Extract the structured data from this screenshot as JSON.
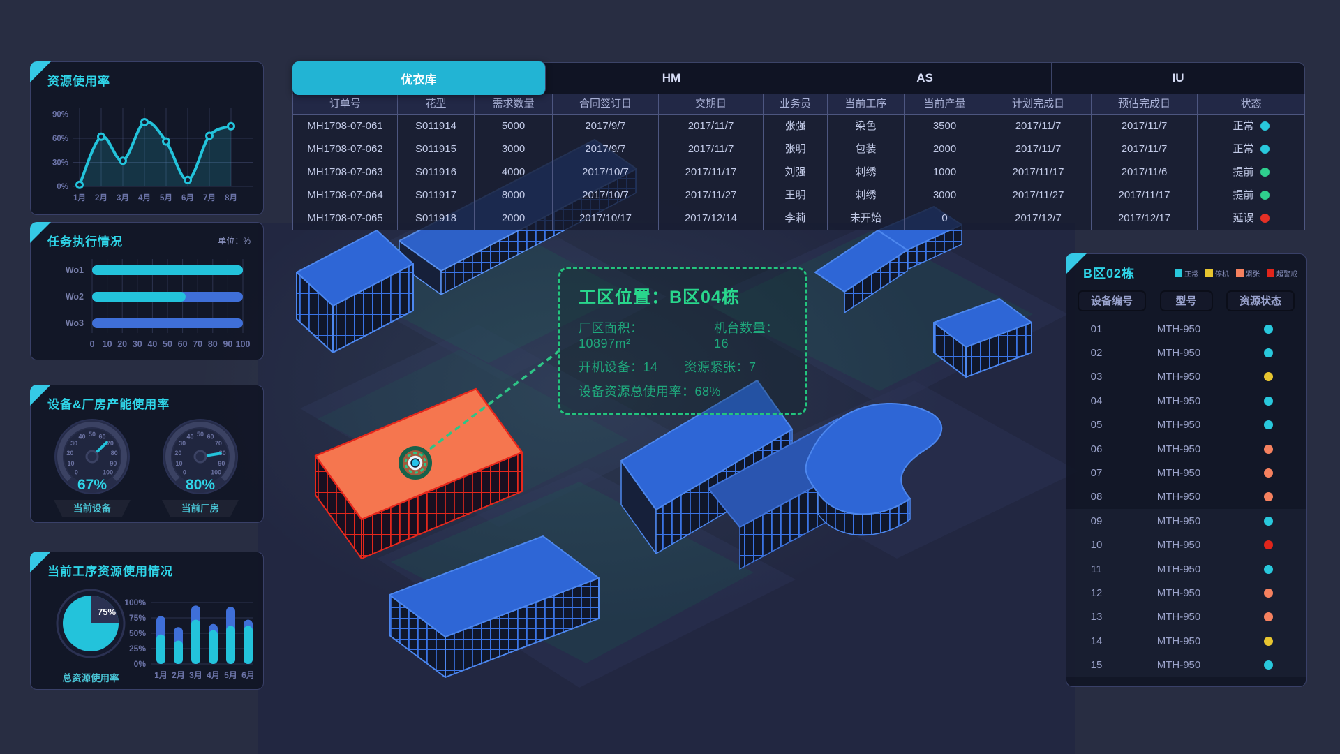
{
  "colors": {
    "accent_cyan": "#29c6dc",
    "bar_blue": "#3f6fd8"
  },
  "panels": {
    "resource_usage": {
      "title": "资源使用率",
      "chart_data": {
        "type": "line",
        "x": [
          "1月",
          "2月",
          "3月",
          "4月",
          "5月",
          "6月",
          "7月",
          "8月"
        ],
        "values": [
          2,
          62,
          32,
          80,
          56,
          8,
          63,
          75
        ],
        "yticks": [
          0,
          30,
          60,
          90
        ],
        "ytick_suffix": "%",
        "ylim": [
          0,
          95
        ],
        "grid": true
      }
    },
    "task_execution": {
      "title": "任务执行情况",
      "unit": "单位：%",
      "chart_data": {
        "type": "hbar",
        "categories": [
          "Wo1",
          "Wo2",
          "Wo3"
        ],
        "series": [
          {
            "name": "cyan",
            "values": [
              100,
              62,
              0
            ]
          },
          {
            "name": "blue",
            "values": [
              0,
              38,
              100
            ]
          }
        ],
        "xticks": [
          0,
          10,
          20,
          30,
          40,
          50,
          60,
          70,
          80,
          90,
          100
        ],
        "xlim": [
          0,
          100
        ]
      }
    },
    "capacity": {
      "title": "设备&厂房产能使用率",
      "chart_data": [
        {
          "type": "gauge",
          "value": 67,
          "display": "67%",
          "caption": "当前设备",
          "min": 0,
          "max": 100,
          "ticks": [
            0,
            10,
            20,
            30,
            40,
            50,
            60,
            70,
            80,
            90,
            100
          ]
        },
        {
          "type": "gauge",
          "value": 80,
          "display": "80%",
          "caption": "当前厂房",
          "min": 0,
          "max": 100,
          "ticks": [
            0,
            10,
            20,
            30,
            40,
            50,
            60,
            70,
            80,
            90,
            100
          ]
        }
      ]
    },
    "process_usage": {
      "title": "当前工序资源使用情况",
      "chart_data": [
        {
          "type": "pie",
          "value": 75,
          "label": "75%",
          "caption": "总资源使用率"
        },
        {
          "type": "stacked-bar",
          "categories": [
            "1月",
            "2月",
            "3月",
            "4月",
            "5月",
            "6月"
          ],
          "lower": [
            48,
            38,
            72,
            55,
            62,
            62
          ],
          "totals": [
            78,
            60,
            95,
            65,
            93,
            72
          ],
          "yticks": [
            0,
            25,
            50,
            75,
            100
          ],
          "ytick_suffix": "%",
          "ylim": [
            0,
            100
          ]
        }
      ]
    }
  },
  "orders": {
    "tabs": [
      {
        "label": "优衣库",
        "active": true
      },
      {
        "label": "HM",
        "active": false
      },
      {
        "label": "AS",
        "active": false
      },
      {
        "label": "IU",
        "active": false
      }
    ],
    "columns": [
      "订单号",
      "花型",
      "需求数量",
      "合同签订日",
      "交期日",
      "业务员",
      "当前工序",
      "当前产量",
      "计划完成日",
      "预估完成日",
      "状态"
    ],
    "rows": [
      {
        "cells": [
          "MH1708-07-061",
          "S011914",
          "5000",
          "2017/9/7",
          "2017/11/7",
          "张强",
          "染色",
          "3500",
          "2017/11/7",
          "2017/11/7"
        ],
        "status": {
          "label": "正常",
          "key": "normal"
        }
      },
      {
        "cells": [
          "MH1708-07-062",
          "S011915",
          "3000",
          "2017/9/7",
          "2017/11/7",
          "张明",
          "包装",
          "2000",
          "2017/11/7",
          "2017/11/7"
        ],
        "status": {
          "label": "正常",
          "key": "normal"
        }
      },
      {
        "cells": [
          "MH1708-07-063",
          "S011916",
          "4000",
          "2017/10/7",
          "2017/11/17",
          "刘强",
          "刺绣",
          "1000",
          "2017/11/17",
          "2017/11/6"
        ],
        "status": {
          "label": "提前",
          "key": "ahead"
        }
      },
      {
        "cells": [
          "MH1708-07-064",
          "S011917",
          "8000",
          "2017/10/7",
          "2017/11/27",
          "王明",
          "刺绣",
          "3000",
          "2017/11/27",
          "2017/11/17"
        ],
        "status": {
          "label": "提前",
          "key": "ahead"
        }
      },
      {
        "cells": [
          "MH1708-07-065",
          "S011918",
          "2000",
          "2017/10/17",
          "2017/12/14",
          "李莉",
          "未开始",
          "0",
          "2017/12/7",
          "2017/12/17"
        ],
        "status": {
          "label": "延误",
          "key": "delay"
        }
      }
    ],
    "status_colors": {
      "normal": "#29c8dc",
      "ahead": "#2fcf8e",
      "delay": "#e53026"
    }
  },
  "map_tooltip": {
    "title": "工区位置：B区04栋",
    "rows": [
      [
        "厂区面积：10897m²",
        "机台数量：16"
      ],
      [
        "开机设备：14",
        "资源紧张：7"
      ],
      [
        "设备资源总使用率：68%"
      ]
    ]
  },
  "device_panel": {
    "title": "B区02栋",
    "legend": [
      {
        "label": "正常",
        "key": "normal"
      },
      {
        "label": "停机",
        "key": "stopped"
      },
      {
        "label": "紧张",
        "key": "busy"
      },
      {
        "label": "超警戒",
        "key": "alert"
      }
    ],
    "status_colors": {
      "normal": "#29c8dc",
      "stopped": "#e7c530",
      "busy": "#f5815f",
      "alert": "#e0251b"
    },
    "filters": [
      "设备编号",
      "型号",
      "资源状态"
    ],
    "rows": [
      {
        "id": "01",
        "model": "MTH-950",
        "status": "normal"
      },
      {
        "id": "02",
        "model": "MTH-950",
        "status": "normal"
      },
      {
        "id": "03",
        "model": "MTH-950",
        "status": "stopped"
      },
      {
        "id": "04",
        "model": "MTH-950",
        "status": "normal"
      },
      {
        "id": "05",
        "model": "MTH-950",
        "status": "normal"
      },
      {
        "id": "06",
        "model": "MTH-950",
        "status": "busy"
      },
      {
        "id": "07",
        "model": "MTH-950",
        "status": "busy"
      },
      {
        "id": "08",
        "model": "MTH-950",
        "status": "busy"
      },
      {
        "id": "09",
        "model": "MTH-950",
        "status": "normal"
      },
      {
        "id": "10",
        "model": "MTH-950",
        "status": "alert"
      },
      {
        "id": "11",
        "model": "MTH-950",
        "status": "normal"
      },
      {
        "id": "12",
        "model": "MTH-950",
        "status": "busy"
      },
      {
        "id": "13",
        "model": "MTH-950",
        "status": "busy"
      },
      {
        "id": "14",
        "model": "MTH-950",
        "status": "stopped"
      },
      {
        "id": "15",
        "model": "MTH-950",
        "status": "normal"
      }
    ]
  }
}
